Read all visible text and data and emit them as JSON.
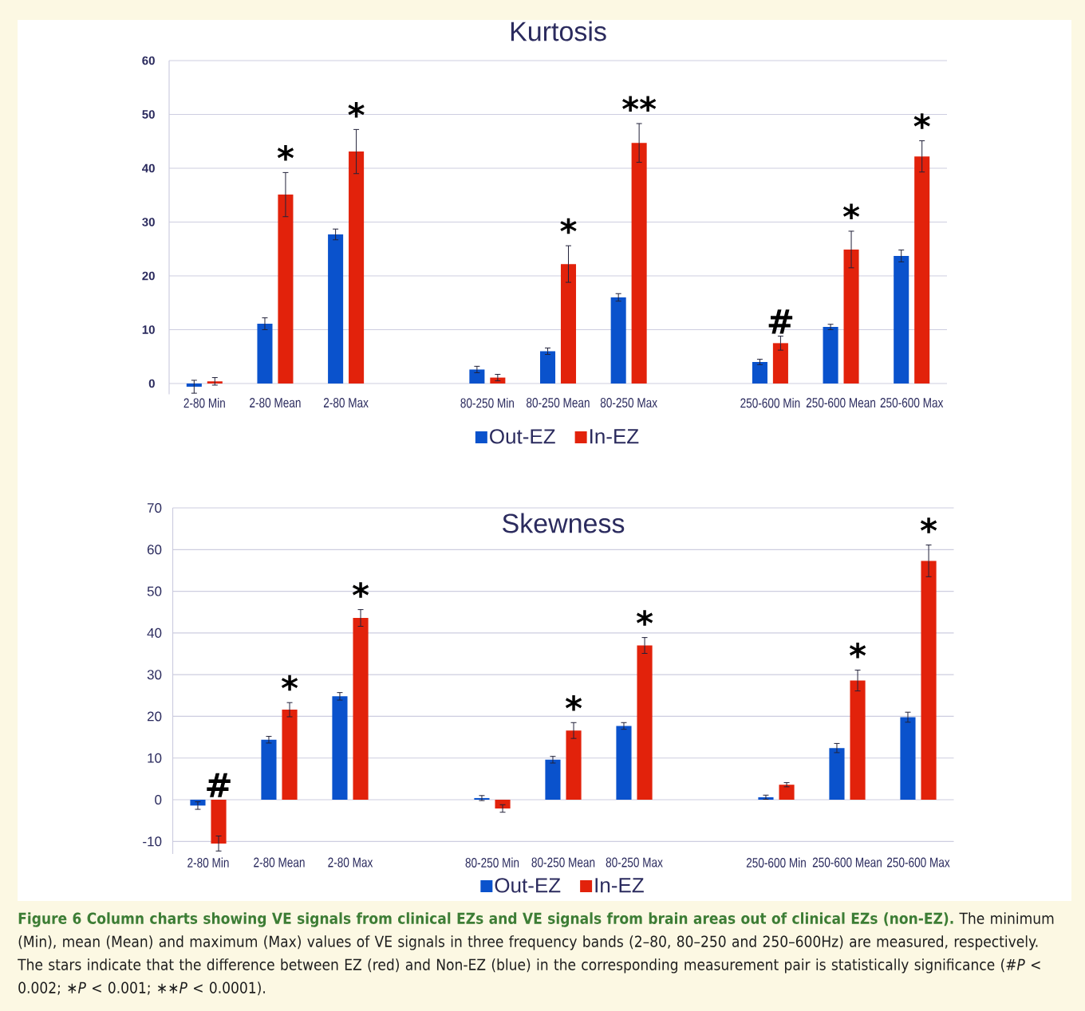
{
  "chart_data": [
    {
      "type": "bar",
      "title": "Kurtosis",
      "categories": [
        "2-80 Min",
        "2-80 Mean",
        "2-80 Max",
        null,
        "80-250 Min",
        "80-250 Mean",
        "80-250 Max",
        null,
        "250-600 Min",
        "250-600 Mean",
        "250-600 Max"
      ],
      "series": [
        {
          "name": "Out-EZ",
          "color": "#0a52cc",
          "values": [
            -0.6,
            11.1,
            27.7,
            null,
            2.6,
            6.0,
            16.0,
            null,
            4.0,
            10.5,
            23.7
          ],
          "errors": [
            1.2,
            1.1,
            1.0,
            null,
            0.6,
            0.6,
            0.7,
            null,
            0.5,
            0.5,
            1.1
          ]
        },
        {
          "name": "In-EZ",
          "color": "#e2220b",
          "values": [
            0.4,
            35.1,
            43.1,
            null,
            1.1,
            22.2,
            44.7,
            null,
            7.5,
            24.9,
            42.2
          ],
          "errors": [
            0.7,
            4.1,
            4.1,
            null,
            0.6,
            3.4,
            3.6,
            null,
            1.3,
            3.4,
            2.9
          ]
        }
      ],
      "ylim": [
        -2,
        60
      ],
      "yticks": [
        0,
        10,
        20,
        30,
        40,
        50,
        60
      ],
      "grid": "y",
      "legend": "bottom",
      "annotations": [
        {
          "text": "*",
          "x": "2-80 Mean",
          "y": 35.1
        },
        {
          "text": "*",
          "x": "2-80 Max",
          "y": 43.1
        },
        {
          "text": "*",
          "x": "80-250 Mean",
          "y": 22.2
        },
        {
          "text": "**",
          "x": "80-250 Max",
          "y": 44.7
        },
        {
          "text": "#",
          "x": "250-600 Min",
          "y": 7.5
        },
        {
          "text": "*",
          "x": "250-600 Mean",
          "y": 24.9
        },
        {
          "text": "*",
          "x": "250-600 Max",
          "y": 42.2
        }
      ]
    },
    {
      "type": "bar",
      "title": "Skewness",
      "categories": [
        "2-80 Min",
        "2-80 Mean",
        "2-80 Max",
        null,
        "80-250 Min",
        "80-250 Mean",
        "80-250 Max",
        null,
        "250-600 Min",
        "250-600 Mean",
        "250-600 Max"
      ],
      "series": [
        {
          "name": "Out-EZ",
          "color": "#0a52cc",
          "values": [
            -1.4,
            14.4,
            24.8,
            null,
            0.4,
            9.6,
            17.7,
            null,
            0.6,
            12.4,
            19.8
          ],
          "errors": [
            0.9,
            0.8,
            0.9,
            null,
            0.6,
            0.8,
            0.8,
            null,
            0.5,
            1.1,
            1.2
          ]
        },
        {
          "name": "In-EZ",
          "color": "#e2220b",
          "values": [
            -10.5,
            21.6,
            43.6,
            null,
            -2.1,
            16.6,
            37.0,
            null,
            3.6,
            28.6,
            57.3
          ],
          "errors": [
            1.8,
            1.7,
            2.0,
            null,
            0.9,
            1.9,
            1.9,
            null,
            0.5,
            2.5,
            3.8
          ]
        }
      ],
      "ylim": [
        -13,
        70
      ],
      "yticks": [
        -10,
        0,
        10,
        20,
        30,
        40,
        50,
        60,
        70
      ],
      "grid": "y",
      "legend": "bottom",
      "annotations": [
        {
          "text": "#",
          "x": "2-80 Min",
          "y": -10.5
        },
        {
          "text": "*",
          "x": "2-80 Mean",
          "y": 21.6
        },
        {
          "text": "*",
          "x": "2-80 Max",
          "y": 43.6
        },
        {
          "text": "*",
          "x": "80-250 Mean",
          "y": 16.6
        },
        {
          "text": "*",
          "x": "80-250 Max",
          "y": 37.0
        },
        {
          "text": "*",
          "x": "250-600 Mean",
          "y": 28.6
        },
        {
          "text": "*",
          "x": "250-600 Max",
          "y": 57.3
        },
        "Figure 6 Column charts showing VE signals from clinical EZs and VE signals from brain areas out of clinical EZs (non-EZ).",
        "The minimum (Min), mean (Mean) and maximum (Max) values of VE signals in three frequency bands (2–80, 80–250 and 250–600Hz) are measured, respectively. The stars indicate that the difference between EZ (red) and Non-EZ (blue) in the corresponding measurement pair is statistically significance (#*P* < 0.002; ∗*P* < 0.001; ∗∗*P* < 0.0001)."
      ]
    }
  ]
}
